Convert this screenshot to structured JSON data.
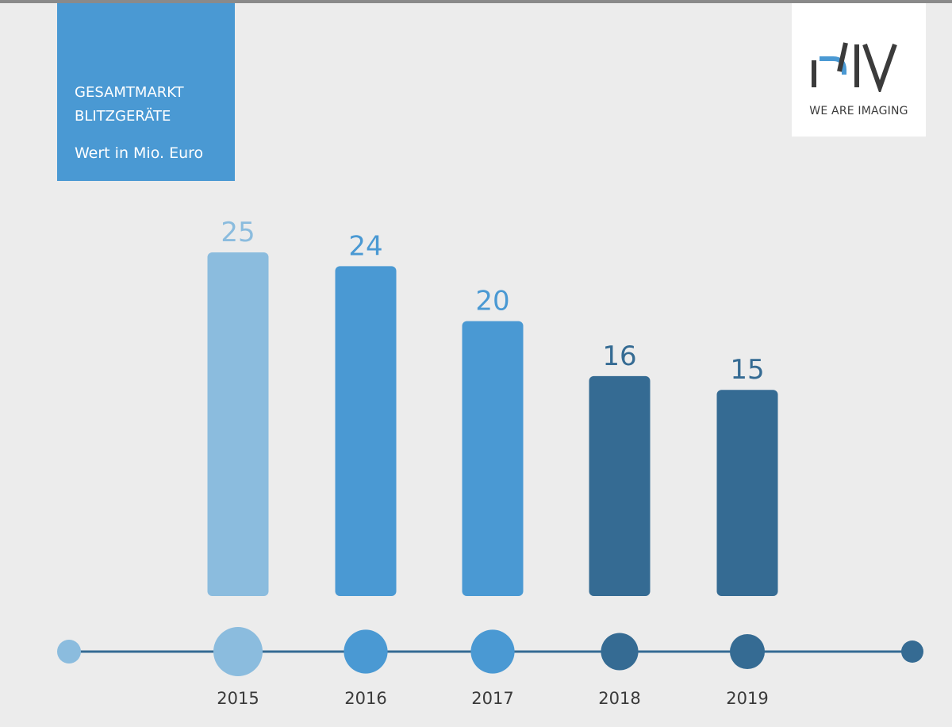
{
  "title_box": {
    "line1": "GESAMTMARKT",
    "line2": "BLITZGERÄTE",
    "unit": "Wert in Mio. Euro"
  },
  "logo": {
    "tagline": "WE ARE IMAGING",
    "icon": "piv-logo-icon"
  },
  "colors": {
    "light_blue": "#8bbcde",
    "mid_blue": "#4a99d3",
    "dark_blue": "#356b93",
    "timeline": "#356b93"
  },
  "chart_data": {
    "type": "bar",
    "categories": [
      "2015",
      "2016",
      "2017",
      "2018",
      "2019"
    ],
    "values": [
      25,
      24,
      20,
      16,
      15
    ],
    "bar_colors": [
      "#8bbcde",
      "#4a99d3",
      "#4a99d3",
      "#356b93",
      "#356b93"
    ],
    "marker_scale": [
      1.0,
      0.89,
      0.89,
      0.76,
      0.71
    ],
    "title": "GESAMTMARKT BLITZGERÄTE",
    "ylabel": "Wert in Mio. Euro",
    "xlabel": "",
    "ylim": [
      0,
      25
    ],
    "grid": false,
    "legend": "none",
    "data_labels": true
  }
}
